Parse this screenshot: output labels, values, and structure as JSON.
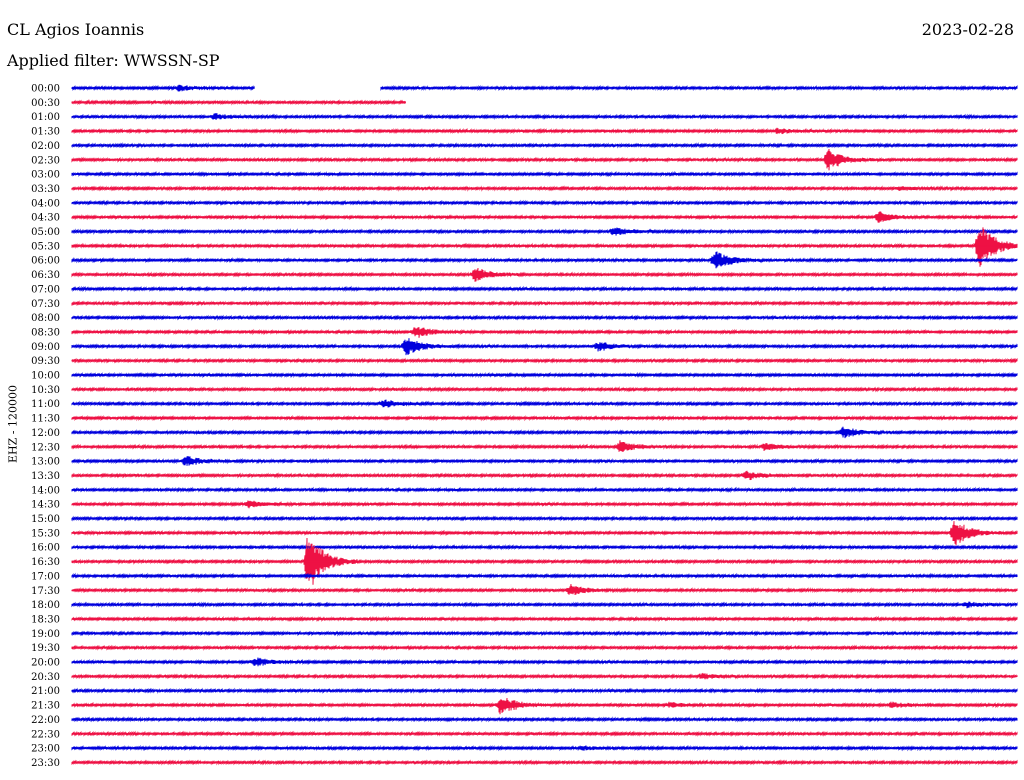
{
  "header": {
    "station": "CL Agios Ioannis",
    "date": "2023-02-28",
    "filter": "Applied filter: WWSSN-SP"
  },
  "chart_data": {
    "type": "line",
    "title": "CL Agios Ioannis",
    "date": "2023-02-28",
    "filter_label": "Applied filter: WWSSN-SP",
    "ylabel": "EHZ - 120000",
    "trace_colors": [
      "#0000dd",
      "#ee1144"
    ],
    "tick_labels": [
      "00:00",
      "00:30",
      "01:00",
      "01:30",
      "02:00",
      "02:30",
      "03:00",
      "03:30",
      "04:00",
      "04:30",
      "05:00",
      "05:30",
      "06:00",
      "06:30",
      "07:00",
      "07:30",
      "08:00",
      "08:30",
      "09:00",
      "09:30",
      "10:00",
      "10:30",
      "11:00",
      "11:30",
      "12:00",
      "12:30",
      "13:00",
      "13:30",
      "14:00",
      "14:30",
      "15:00",
      "15:30",
      "16:00",
      "16:30",
      "17:00",
      "17:30",
      "18:00",
      "18:30",
      "19:00",
      "19:30",
      "20:00",
      "20:30",
      "21:00",
      "21:30",
      "22:00",
      "22:30",
      "23:00",
      "23:30"
    ],
    "x_unit": "minutes within 30-minute row",
    "xlim": [
      0,
      30
    ],
    "events": [
      {
        "row": "00:00",
        "minute": 3.4,
        "amplitude": 0.3
      },
      {
        "row": "01:00",
        "minute": 4.5,
        "amplitude": 0.3
      },
      {
        "row": "01:30",
        "minute": 22.4,
        "amplitude": 0.3
      },
      {
        "row": "02:30",
        "minute": 24.0,
        "amplitude": 1.2
      },
      {
        "row": "03:30",
        "minute": 26.3,
        "amplitude": 0.2
      },
      {
        "row": "04:30",
        "minute": 25.6,
        "amplitude": 0.6
      },
      {
        "row": "05:00",
        "minute": 17.2,
        "amplitude": 0.5
      },
      {
        "row": "05:30",
        "minute": 28.8,
        "amplitude": 2.6
      },
      {
        "row": "06:00",
        "minute": 20.4,
        "amplitude": 1.1
      },
      {
        "row": "06:30",
        "minute": 12.8,
        "amplitude": 0.8
      },
      {
        "row": "08:30",
        "minute": 10.9,
        "amplitude": 0.7
      },
      {
        "row": "09:00",
        "minute": 10.6,
        "amplitude": 1.0
      },
      {
        "row": "09:00",
        "minute": 16.7,
        "amplitude": 0.5
      },
      {
        "row": "11:00",
        "minute": 9.9,
        "amplitude": 0.4
      },
      {
        "row": "12:00",
        "minute": 24.5,
        "amplitude": 0.6
      },
      {
        "row": "12:30",
        "minute": 17.4,
        "amplitude": 0.6
      },
      {
        "row": "12:30",
        "minute": 22.0,
        "amplitude": 0.4
      },
      {
        "row": "13:00",
        "minute": 3.6,
        "amplitude": 0.6
      },
      {
        "row": "13:30",
        "minute": 21.4,
        "amplitude": 0.5
      },
      {
        "row": "14:30",
        "minute": 5.6,
        "amplitude": 0.4
      },
      {
        "row": "15:30",
        "minute": 28.0,
        "amplitude": 1.5
      },
      {
        "row": "16:30",
        "minute": 7.5,
        "amplitude": 3.5
      },
      {
        "row": "17:30",
        "minute": 15.8,
        "amplitude": 0.6
      },
      {
        "row": "18:00",
        "minute": 28.4,
        "amplitude": 0.3
      },
      {
        "row": "20:00",
        "minute": 5.8,
        "amplitude": 0.5
      },
      {
        "row": "20:30",
        "minute": 20.0,
        "amplitude": 0.3
      },
      {
        "row": "21:30",
        "minute": 13.6,
        "amplitude": 1.1
      },
      {
        "row": "21:30",
        "minute": 19.0,
        "amplitude": 0.3
      },
      {
        "row": "21:30",
        "minute": 26.0,
        "amplitude": 0.3
      },
      {
        "row": "23:00",
        "minute": 16.2,
        "amplitude": 0.2
      }
    ],
    "data_gaps": [
      {
        "row": "00:00",
        "from_minute": 5.8,
        "to_minute": 9.8
      },
      {
        "row": "00:30",
        "from_minute": 10.6,
        "to_minute": 30
      }
    ],
    "grid": false
  }
}
